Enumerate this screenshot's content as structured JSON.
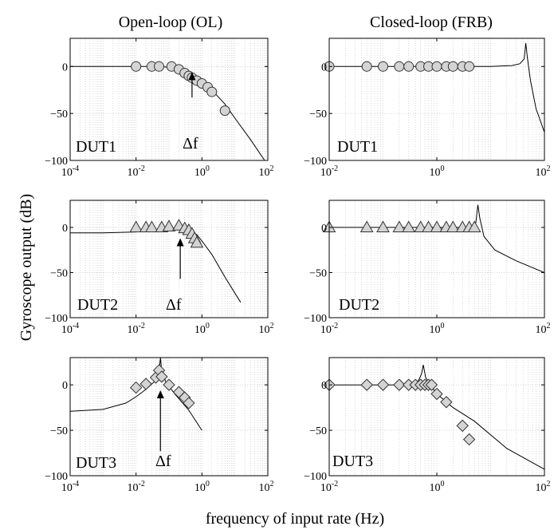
{
  "column_titles": [
    "Open-loop (OL)",
    "Closed-loop (FRB)"
  ],
  "ylabel": "Gyroscope output (dB)",
  "xlabel": "frequency of input rate (Hz)",
  "delta_label": "Δf",
  "colors": {
    "marker_fill": "#d4d4d4",
    "line": "#000000",
    "grid": "#bdbdbd"
  },
  "chart_data": [
    {
      "type": "line",
      "column": "Open-loop (OL)",
      "label": "DUT1",
      "marker": "circle",
      "xscale": "log",
      "xlim": [
        0.0001,
        100
      ],
      "ylim": [
        -100,
        30
      ],
      "xticks": [
        0.0001,
        0.01,
        1,
        100
      ],
      "yticks": [
        0,
        -50,
        -100
      ],
      "line": {
        "x": [
          0.0001,
          0.01,
          0.05,
          0.12,
          0.25,
          0.5,
          1,
          2,
          5,
          10,
          30,
          80
        ],
        "y": [
          0,
          0,
          0,
          -1,
          -4,
          -10,
          -17,
          -25,
          -40,
          -55,
          -78,
          -100
        ]
      },
      "points": {
        "x": [
          0.01,
          0.03,
          0.05,
          0.12,
          0.2,
          0.3,
          0.4,
          0.5,
          0.7,
          1.0,
          1.5,
          2.0,
          5.0
        ],
        "y": [
          0,
          0,
          0,
          0,
          -3,
          -7,
          -10,
          -12,
          -15,
          -18,
          -22,
          -27,
          -47
        ]
      },
      "annotation": {
        "x": 0.5,
        "y_tip": -6,
        "y_tail": -33,
        "text": "Δf"
      }
    },
    {
      "type": "line",
      "column": "Closed-loop (FRB)",
      "label": "DUT1",
      "marker": "circle",
      "xscale": "log",
      "xlim": [
        0.01,
        100
      ],
      "ylim": [
        -100,
        30
      ],
      "xticks": [
        0.01,
        1,
        100
      ],
      "yticks": [
        0,
        -50,
        -100
      ],
      "line": {
        "x": [
          0.01,
          1,
          10,
          25,
          35,
          42,
          45,
          48,
          55,
          70,
          100
        ],
        "y": [
          0,
          0,
          0,
          1,
          3,
          8,
          25,
          10,
          -15,
          -45,
          -70
        ]
      },
      "points": {
        "x": [
          0.01,
          0.05,
          0.1,
          0.2,
          0.3,
          0.5,
          0.7,
          1.0,
          1.5,
          2.0,
          3.0,
          4.0
        ],
        "y": [
          0,
          0,
          0,
          0,
          0,
          0,
          0,
          0,
          0,
          0,
          0,
          0
        ]
      }
    },
    {
      "type": "line",
      "column": "Open-loop (OL)",
      "label": "DUT2",
      "marker": "triangle",
      "xscale": "log",
      "xlim": [
        0.0001,
        100
      ],
      "ylim": [
        -100,
        30
      ],
      "xticks": [
        0.0001,
        0.01,
        1,
        100
      ],
      "yticks": [
        0,
        -50,
        -100
      ],
      "line": {
        "x": [
          0.0001,
          0.001,
          0.01,
          0.05,
          0.1,
          0.2,
          0.4,
          0.7,
          1.0,
          2.0,
          5.0,
          15
        ],
        "y": [
          -6,
          -6,
          -5,
          -3,
          -1,
          0,
          -2,
          -8,
          -15,
          -30,
          -55,
          -83
        ]
      },
      "points": {
        "x": [
          0.01,
          0.02,
          0.03,
          0.06,
          0.1,
          0.2,
          0.3,
          0.4,
          0.5,
          0.6,
          0.7
        ],
        "y": [
          0,
          0,
          0,
          0,
          1,
          2,
          -1,
          -3,
          -7,
          -12,
          -17
        ]
      },
      "annotation": {
        "x": 0.22,
        "y_tip": -12,
        "y_tail": -57,
        "text": "Δf"
      }
    },
    {
      "type": "line",
      "column": "Closed-loop (FRB)",
      "label": "DUT2",
      "marker": "triangle",
      "xscale": "log",
      "xlim": [
        0.01,
        100
      ],
      "ylim": [
        -100,
        30
      ],
      "xticks": [
        0.01,
        1,
        100
      ],
      "yticks": [
        0,
        -50,
        -100
      ],
      "line": {
        "x": [
          0.01,
          1,
          3,
          4.5,
          5.3,
          5.8,
          6.3,
          7.5,
          12,
          30,
          100
        ],
        "y": [
          0,
          0,
          0,
          1,
          5,
          25,
          10,
          -10,
          -25,
          -37,
          -50
        ]
      },
      "points": {
        "x": [
          0.01,
          0.05,
          0.1,
          0.2,
          0.3,
          0.5,
          0.7,
          1.0,
          1.5,
          2.0,
          3.0,
          4.0,
          5.0
        ],
        "y": [
          0,
          0,
          0,
          0,
          0,
          0,
          0,
          0,
          0,
          0,
          0,
          0,
          0
        ]
      }
    },
    {
      "type": "line",
      "column": "Open-loop (OL)",
      "label": "DUT3",
      "marker": "diamond",
      "xscale": "log",
      "xlim": [
        0.0001,
        100
      ],
      "ylim": [
        -100,
        30
      ],
      "xticks": [
        0.0001,
        0.01,
        1,
        100
      ],
      "yticks": [
        0,
        -50,
        -100
      ],
      "line": {
        "x": [
          0.0001,
          0.001,
          0.005,
          0.01,
          0.02,
          0.04,
          0.05,
          0.055,
          0.06,
          0.08,
          0.15,
          0.4,
          1.0
        ],
        "y": [
          -29,
          -27,
          -20,
          -13,
          -5,
          5,
          15,
          30,
          15,
          3,
          -10,
          -28,
          -50
        ]
      },
      "points": {
        "x": [
          0.01,
          0.02,
          0.04,
          0.05,
          0.06,
          0.1,
          0.2,
          0.3,
          0.4
        ],
        "y": [
          -3,
          1,
          8,
          16,
          9,
          0,
          -8,
          -14,
          -20
        ]
      },
      "annotation": {
        "x": 0.055,
        "y_tip": -6,
        "y_tail": -73,
        "text": "Δf"
      }
    },
    {
      "type": "line",
      "column": "Closed-loop (FRB)",
      "label": "DUT3",
      "marker": "diamond",
      "xscale": "log",
      "xlim": [
        0.01,
        100
      ],
      "ylim": [
        -100,
        30
      ],
      "xticks": [
        0.01,
        1,
        100
      ],
      "yticks": [
        0,
        -50,
        -100
      ],
      "line": {
        "x": [
          0.01,
          0.2,
          0.35,
          0.45,
          0.52,
          0.56,
          0.62,
          0.75,
          1.0,
          2.0,
          5.0,
          20,
          100
        ],
        "y": [
          0,
          0,
          1,
          4,
          12,
          22,
          8,
          0,
          -10,
          -25,
          -40,
          -70,
          -93
        ]
      },
      "points": {
        "x": [
          0.01,
          0.05,
          0.1,
          0.2,
          0.3,
          0.4,
          0.5,
          0.6,
          0.7,
          0.8,
          1.0,
          1.5,
          3.0,
          4.0
        ],
        "y": [
          0,
          0,
          0,
          0,
          0,
          0,
          0,
          0,
          0,
          0,
          -10,
          -19,
          -45,
          -60
        ]
      }
    }
  ]
}
